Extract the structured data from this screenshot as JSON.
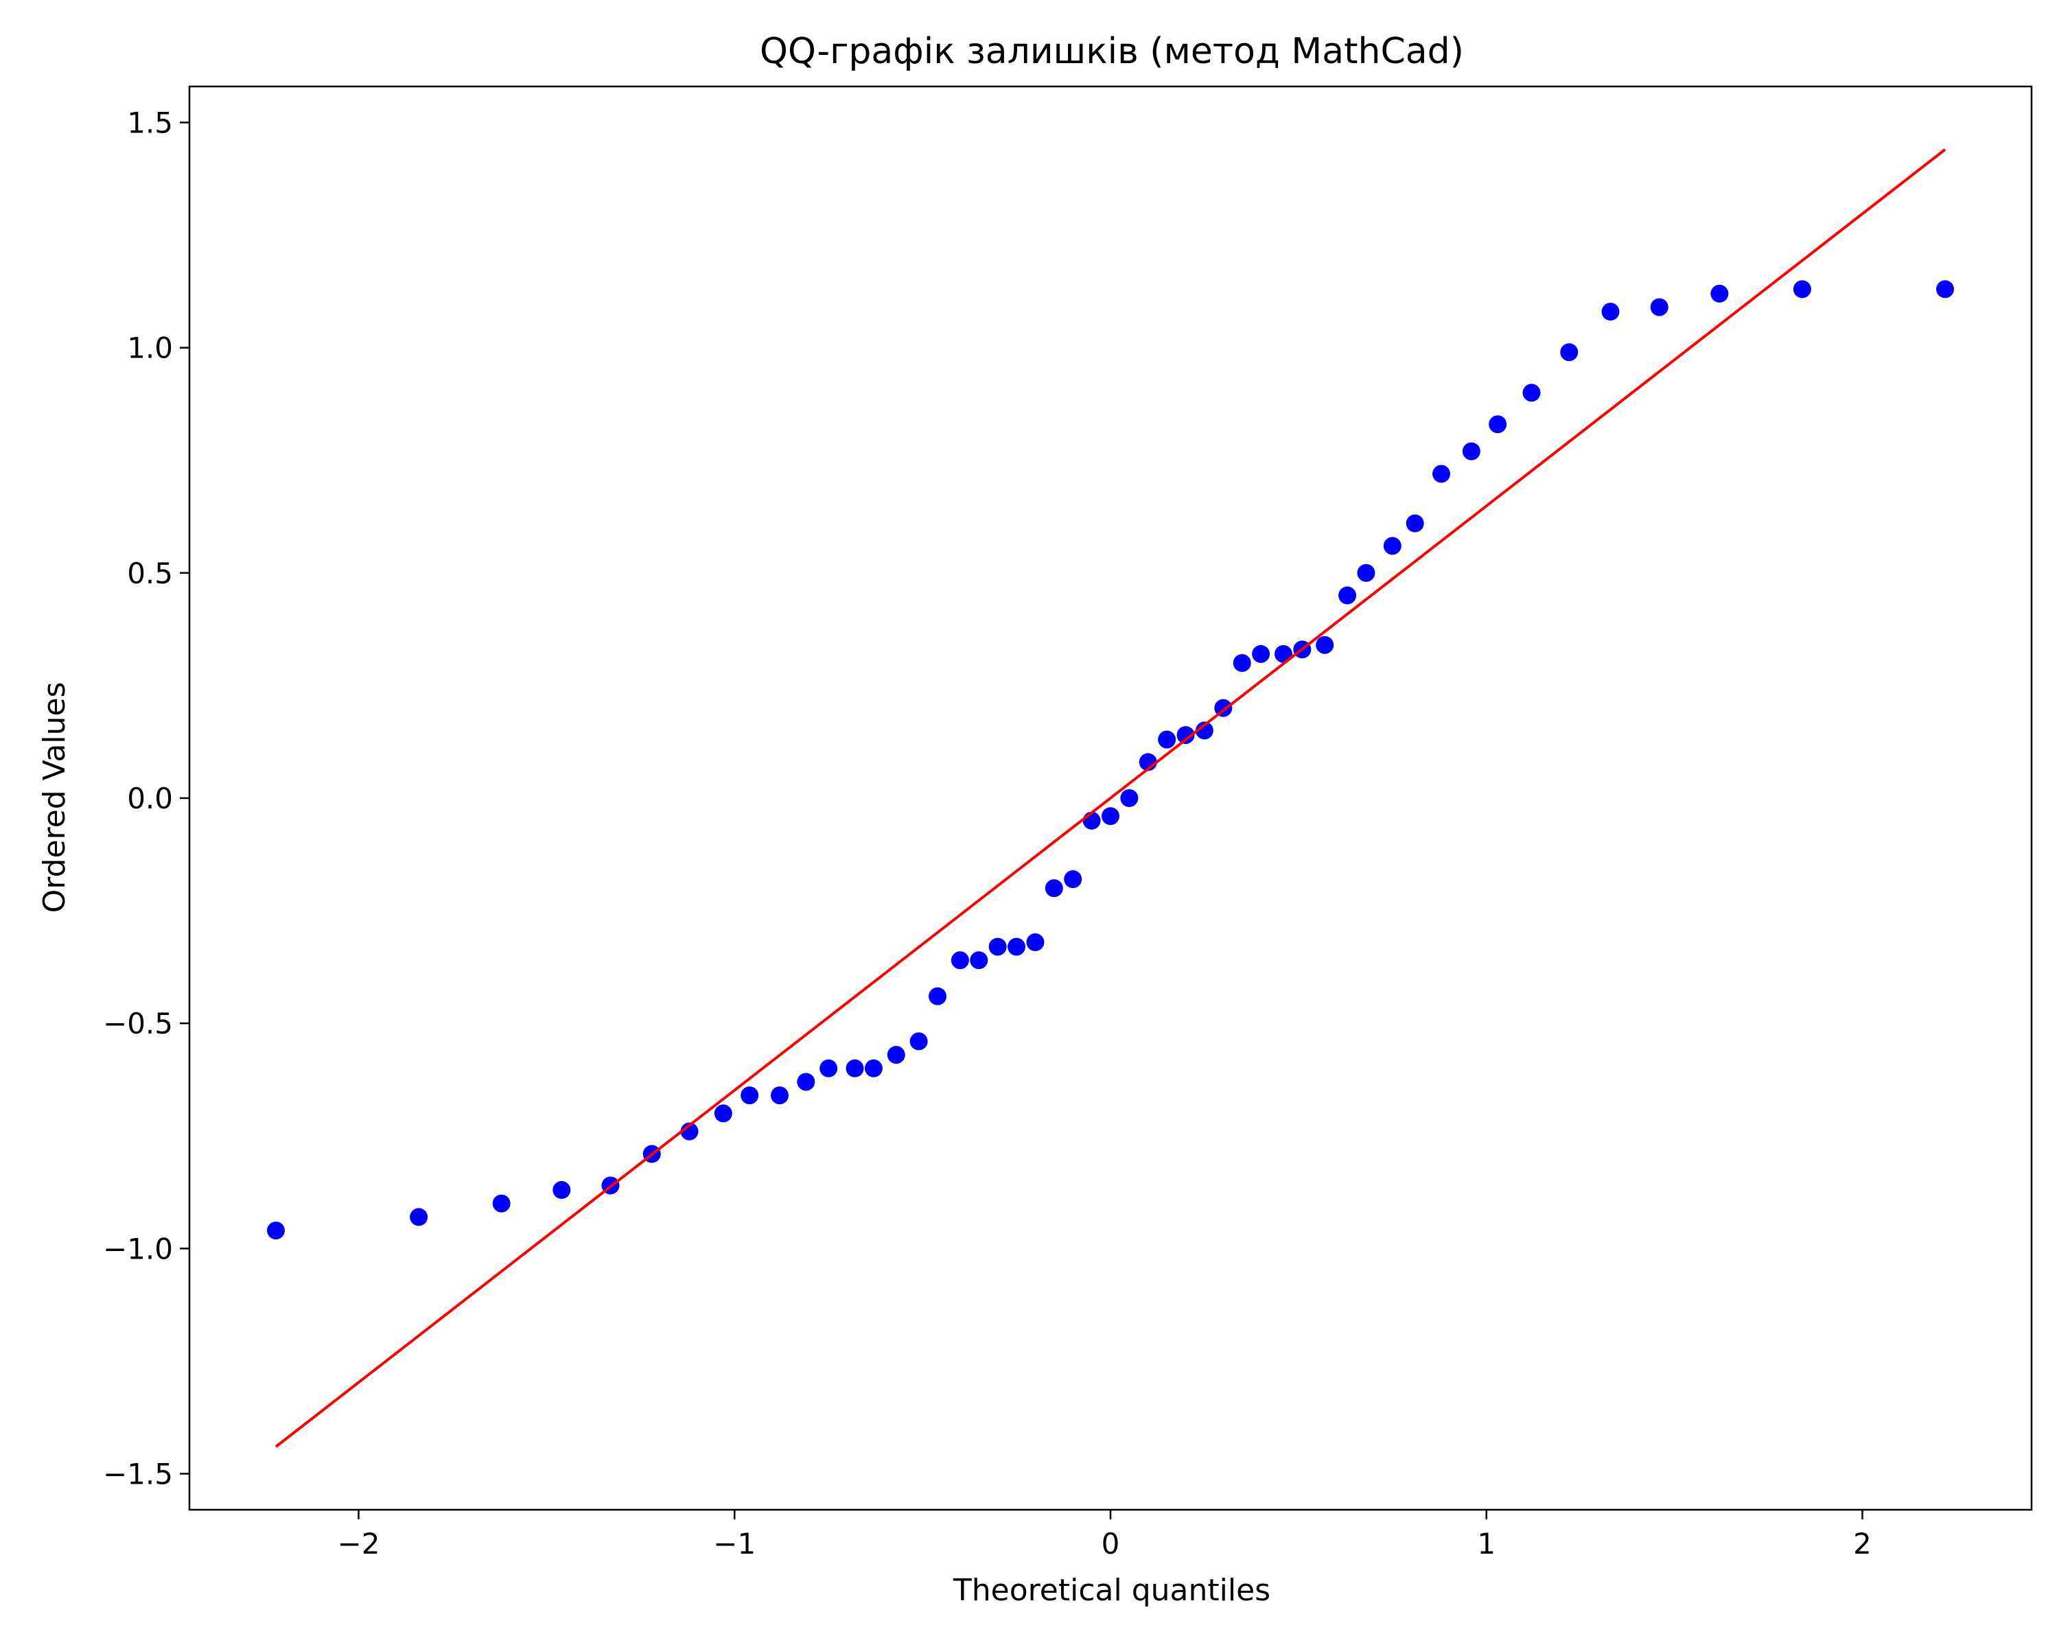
{
  "chart_data": {
    "type": "scatter",
    "title": "QQ-графік залишків (метод MathCad)",
    "xlabel": "Theoretical quantiles",
    "ylabel": "Ordered Values",
    "xlim": [
      -2.45,
      2.45
    ],
    "ylim": [
      -1.58,
      1.58
    ],
    "grid": false,
    "x_ticks": [
      -2,
      -1,
      0,
      1,
      2
    ],
    "x_tick_labels": [
      "−2",
      "−1",
      "0",
      "1",
      "2"
    ],
    "y_ticks": [
      -1.5,
      -1.0,
      -0.5,
      0.0,
      0.5,
      1.0,
      1.5
    ],
    "y_tick_labels": [
      "−1.5",
      "−1.0",
      "−0.5",
      "0.0",
      "0.5",
      "1.0",
      "1.5"
    ],
    "series": [
      {
        "kind": "points",
        "color": "#0000ff",
        "points": [
          [
            -2.22,
            -0.96
          ],
          [
            -1.84,
            -0.93
          ],
          [
            -1.62,
            -0.9
          ],
          [
            -1.46,
            -0.87
          ],
          [
            -1.33,
            -0.86
          ],
          [
            -1.22,
            -0.79
          ],
          [
            -1.12,
            -0.74
          ],
          [
            -1.03,
            -0.7
          ],
          [
            -0.96,
            -0.66
          ],
          [
            -0.88,
            -0.66
          ],
          [
            -0.81,
            -0.63
          ],
          [
            -0.75,
            -0.6
          ],
          [
            -0.68,
            -0.6
          ],
          [
            -0.63,
            -0.6
          ],
          [
            -0.57,
            -0.57
          ],
          [
            -0.51,
            -0.54
          ],
          [
            -0.46,
            -0.44
          ],
          [
            -0.4,
            -0.36
          ],
          [
            -0.35,
            -0.36
          ],
          [
            -0.3,
            -0.33
          ],
          [
            -0.25,
            -0.33
          ],
          [
            -0.2,
            -0.32
          ],
          [
            -0.15,
            -0.2
          ],
          [
            -0.1,
            -0.18
          ],
          [
            -0.05,
            -0.05
          ],
          [
            0.0,
            -0.04
          ],
          [
            0.05,
            0.0
          ],
          [
            0.1,
            0.08
          ],
          [
            0.15,
            0.13
          ],
          [
            0.2,
            0.14
          ],
          [
            0.25,
            0.15
          ],
          [
            0.3,
            0.2
          ],
          [
            0.35,
            0.3
          ],
          [
            0.4,
            0.32
          ],
          [
            0.46,
            0.32
          ],
          [
            0.51,
            0.33
          ],
          [
            0.57,
            0.34
          ],
          [
            0.63,
            0.45
          ],
          [
            0.68,
            0.5
          ],
          [
            0.75,
            0.56
          ],
          [
            0.81,
            0.61
          ],
          [
            0.88,
            0.72
          ],
          [
            0.96,
            0.77
          ],
          [
            1.03,
            0.83
          ],
          [
            1.12,
            0.9
          ],
          [
            1.22,
            0.99
          ],
          [
            1.33,
            1.08
          ],
          [
            1.46,
            1.09
          ],
          [
            1.62,
            1.12
          ],
          [
            1.84,
            1.13
          ],
          [
            2.22,
            1.13
          ]
        ]
      },
      {
        "kind": "line",
        "color": "#ff0000",
        "points": [
          [
            -2.22,
            -1.44
          ],
          [
            2.22,
            1.44
          ]
        ]
      }
    ]
  }
}
